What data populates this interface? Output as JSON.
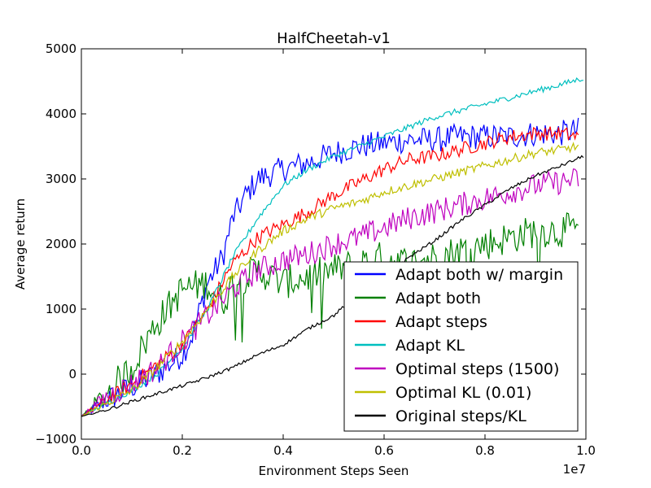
{
  "chart_data": {
    "type": "line",
    "title": "HalfCheetah-v1",
    "xlabel": "Environment Steps Seen",
    "ylabel": "Average return",
    "x_multiplier_label": "1e7",
    "xlim": [
      0,
      1.0
    ],
    "ylim": [
      -1000,
      5000
    ],
    "xticks": [
      "0.0",
      "0.2",
      "0.4",
      "0.6",
      "0.8",
      "1.0"
    ],
    "yticks": [
      "−1000",
      "0",
      "1000",
      "2000",
      "3000",
      "4000",
      "5000"
    ],
    "grid": false,
    "legend_position": "lower-right",
    "series": [
      {
        "name": "Adapt both w/ margin",
        "color": "#0000ff",
        "noise": 200,
        "x": [
          0.0,
          0.05,
          0.1,
          0.15,
          0.2,
          0.22,
          0.25,
          0.28,
          0.3,
          0.33,
          0.35,
          0.4,
          0.45,
          0.5,
          0.55,
          0.6,
          0.65,
          0.7,
          0.75,
          0.8,
          0.85,
          0.9,
          0.95,
          0.985
        ],
        "y": [
          -650,
          -400,
          -200,
          0,
          300,
          600,
          1400,
          1800,
          2400,
          2800,
          3000,
          3150,
          3250,
          3400,
          3500,
          3550,
          3600,
          3600,
          3650,
          3650,
          3650,
          3700,
          3700,
          3750
        ]
      },
      {
        "name": "Adapt both",
        "color": "#008000",
        "noise": 260,
        "x": [
          0.0,
          0.05,
          0.1,
          0.12,
          0.15,
          0.2,
          0.25,
          0.28,
          0.3,
          0.35,
          0.4,
          0.45,
          0.5,
          0.55,
          0.6,
          0.65,
          0.7,
          0.75,
          0.8,
          0.85,
          0.9,
          0.95,
          0.985
        ],
        "y": [
          -650,
          -300,
          100,
          400,
          800,
          1300,
          1400,
          1100,
          1400,
          1600,
          1400,
          1500,
          1600,
          1700,
          1800,
          1700,
          1800,
          1900,
          2000,
          2100,
          2200,
          2200,
          2250
        ]
      },
      {
        "name": "Adapt steps",
        "color": "#ff0000",
        "noise": 110,
        "x": [
          0.0,
          0.05,
          0.1,
          0.15,
          0.2,
          0.25,
          0.3,
          0.35,
          0.4,
          0.45,
          0.5,
          0.55,
          0.6,
          0.65,
          0.7,
          0.75,
          0.8,
          0.85,
          0.9,
          0.95,
          0.985
        ],
        "y": [
          -650,
          -400,
          -150,
          150,
          450,
          1000,
          1700,
          2100,
          2300,
          2500,
          2750,
          2950,
          3150,
          3300,
          3350,
          3450,
          3550,
          3650,
          3700,
          3700,
          3650
        ]
      },
      {
        "name": "Adapt KL",
        "color": "#00bfbf",
        "noise": 45,
        "x": [
          0.0,
          0.05,
          0.1,
          0.15,
          0.2,
          0.25,
          0.3,
          0.35,
          0.4,
          0.45,
          0.5,
          0.55,
          0.6,
          0.65,
          0.7,
          0.75,
          0.8,
          0.85,
          0.9,
          0.95,
          0.995
        ],
        "y": [
          -650,
          -450,
          -250,
          0,
          400,
          1000,
          1800,
          2400,
          2900,
          3150,
          3350,
          3500,
          3650,
          3800,
          3950,
          4050,
          4150,
          4250,
          4350,
          4450,
          4550
        ]
      },
      {
        "name": "Optimal steps (1500)",
        "color": "#bf00bf",
        "noise": 190,
        "x": [
          0.0,
          0.05,
          0.1,
          0.15,
          0.2,
          0.25,
          0.3,
          0.35,
          0.4,
          0.45,
          0.5,
          0.55,
          0.6,
          0.65,
          0.7,
          0.75,
          0.8,
          0.85,
          0.9,
          0.95,
          0.985
        ],
        "y": [
          -650,
          -350,
          -150,
          100,
          500,
          900,
          1300,
          1600,
          1750,
          1850,
          2000,
          2100,
          2250,
          2400,
          2500,
          2600,
          2700,
          2800,
          2900,
          2950,
          3000
        ]
      },
      {
        "name": "Optimal KL (0.01)",
        "color": "#bfbf00",
        "noise": 70,
        "x": [
          0.0,
          0.05,
          0.1,
          0.15,
          0.2,
          0.25,
          0.3,
          0.35,
          0.4,
          0.45,
          0.5,
          0.55,
          0.6,
          0.65,
          0.7,
          0.75,
          0.8,
          0.85,
          0.9,
          0.95,
          0.985
        ],
        "y": [
          -650,
          -450,
          -250,
          100,
          500,
          1000,
          1500,
          1900,
          2200,
          2400,
          2550,
          2650,
          2800,
          2900,
          3000,
          3100,
          3200,
          3300,
          3400,
          3450,
          3500
        ]
      },
      {
        "name": "Original steps/KL",
        "color": "#000000",
        "noise": 25,
        "x": [
          0.0,
          0.05,
          0.1,
          0.15,
          0.2,
          0.25,
          0.3,
          0.35,
          0.4,
          0.45,
          0.5,
          0.55,
          0.6,
          0.65,
          0.7,
          0.75,
          0.8,
          0.85,
          0.9,
          0.95,
          0.995
        ],
        "y": [
          -650,
          -550,
          -420,
          -300,
          -180,
          -50,
          100,
          300,
          450,
          700,
          900,
          1250,
          1500,
          1800,
          2050,
          2350,
          2600,
          2850,
          3050,
          3200,
          3350
        ]
      }
    ]
  }
}
